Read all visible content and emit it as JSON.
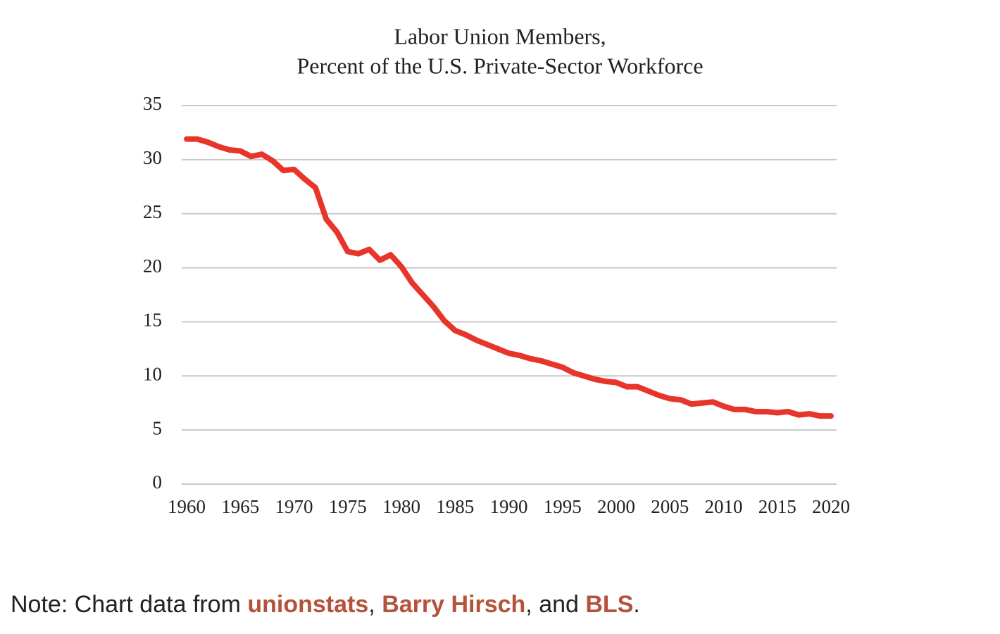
{
  "chart_data": {
    "type": "line",
    "title": "Labor Union Members,",
    "subtitle": "Percent of the U.S. Private-Sector Workforce",
    "x": [
      1960,
      1961,
      1962,
      1963,
      1964,
      1965,
      1966,
      1967,
      1968,
      1969,
      1970,
      1971,
      1972,
      1973,
      1974,
      1975,
      1976,
      1977,
      1978,
      1979,
      1980,
      1981,
      1982,
      1983,
      1984,
      1985,
      1986,
      1987,
      1988,
      1989,
      1990,
      1991,
      1992,
      1993,
      1994,
      1995,
      1996,
      1997,
      1998,
      1999,
      2000,
      2001,
      2002,
      2003,
      2004,
      2005,
      2006,
      2007,
      2008,
      2009,
      2010,
      2011,
      2012,
      2013,
      2014,
      2015,
      2016,
      2017,
      2018,
      2019,
      2020
    ],
    "series": [
      {
        "name": "Union members",
        "color": "#e8352b",
        "values": [
          31.9,
          31.9,
          31.6,
          31.2,
          30.9,
          30.8,
          30.3,
          30.5,
          29.9,
          29.0,
          29.1,
          28.2,
          27.4,
          24.5,
          23.3,
          21.5,
          21.3,
          21.7,
          20.7,
          21.2,
          20.1,
          18.6,
          17.5,
          16.4,
          15.1,
          14.2,
          13.8,
          13.3,
          12.9,
          12.5,
          12.1,
          11.9,
          11.6,
          11.4,
          11.1,
          10.8,
          10.3,
          10.0,
          9.7,
          9.5,
          9.4,
          9.0,
          9.0,
          8.6,
          8.2,
          7.9,
          7.8,
          7.4,
          7.5,
          7.6,
          7.2,
          6.9,
          6.9,
          6.7,
          6.7,
          6.6,
          6.7,
          6.4,
          6.5,
          6.3,
          6.3
        ]
      }
    ],
    "xlim": [
      1960,
      2020
    ],
    "xticks": [
      1960,
      1965,
      1970,
      1975,
      1980,
      1985,
      1990,
      1995,
      2000,
      2005,
      2010,
      2015,
      2020
    ],
    "ylim": [
      0,
      35
    ],
    "yticks": [
      0,
      5,
      10,
      15,
      20,
      25,
      30,
      35
    ],
    "grid": true
  },
  "note": {
    "parts": [
      "Note: Chart data from ",
      ", ",
      ", and ",
      "."
    ],
    "links": [
      "unionstats",
      "Barry Hirsch",
      "BLS"
    ]
  }
}
